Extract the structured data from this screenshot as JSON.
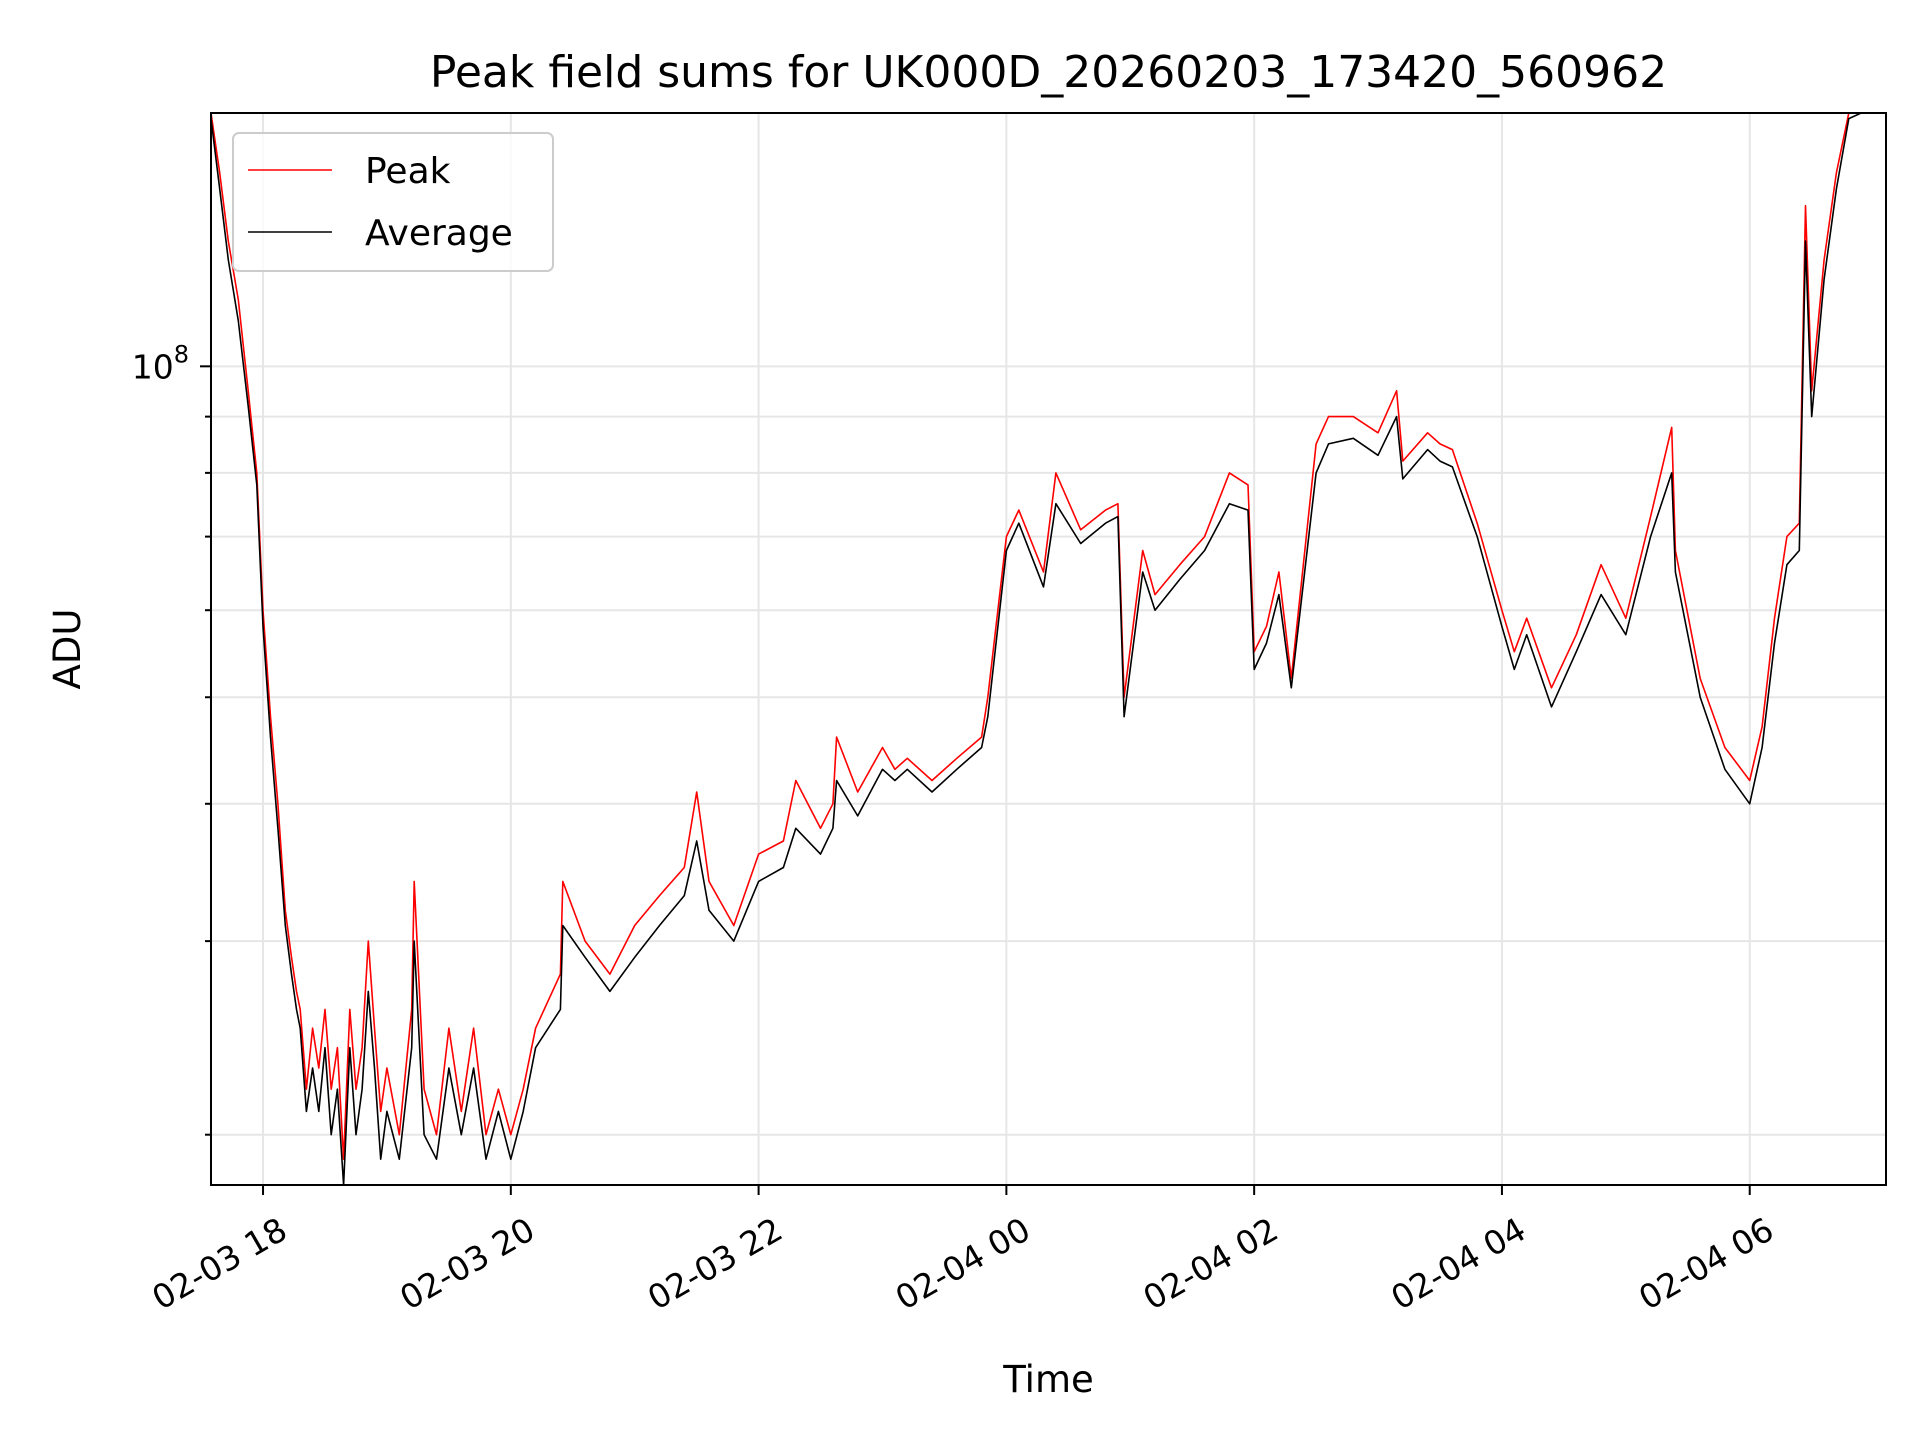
{
  "chart_data": {
    "type": "line",
    "title": "Peak field sums for UK000D_20260203_173420_560962",
    "xlabel": "Time",
    "ylabel": "ADU",
    "yscale": "log",
    "ylim": [
      18000000,
      170000000
    ],
    "xlim": [
      -0.42,
      13.1
    ],
    "x_ticks": [
      {
        "x": 0,
        "label": "02-03 18"
      },
      {
        "x": 2,
        "label": "02-03 20"
      },
      {
        "x": 4,
        "label": "02-03 22"
      },
      {
        "x": 6,
        "label": "02-04 00"
      },
      {
        "x": 8,
        "label": "02-04 02"
      },
      {
        "x": 10,
        "label": "02-04 04"
      },
      {
        "x": 12,
        "label": "02-04 06"
      }
    ],
    "y_ticks": [
      {
        "value": 100000000,
        "label_base": "10",
        "label_exp": "8"
      }
    ],
    "y_minor_ticks": [
      20000000,
      30000000,
      40000000,
      50000000,
      60000000,
      70000000,
      80000000,
      90000000,
      200000000
    ],
    "x_unit": "hours after 02-03 18:00",
    "grid": true,
    "legend_position": "upper-left",
    "series": [
      {
        "name": "Peak",
        "color": "#ff0000",
        "x": [
          -0.42,
          -0.35,
          -0.28,
          -0.2,
          -0.12,
          -0.05,
          0.0,
          0.06,
          0.12,
          0.18,
          0.23,
          0.27,
          0.3,
          0.35,
          0.4,
          0.45,
          0.5,
          0.55,
          0.6,
          0.65,
          0.7,
          0.75,
          0.8,
          0.85,
          0.9,
          0.95,
          1.0,
          1.1,
          1.2,
          1.22,
          1.3,
          1.4,
          1.5,
          1.6,
          1.7,
          1.8,
          1.9,
          2.0,
          2.1,
          2.2,
          2.4,
          2.42,
          2.6,
          2.8,
          3.0,
          3.2,
          3.4,
          3.5,
          3.6,
          3.8,
          4.0,
          4.2,
          4.3,
          4.5,
          4.6,
          4.63,
          4.8,
          5.0,
          5.1,
          5.2,
          5.4,
          5.6,
          5.8,
          5.85,
          6.0,
          6.1,
          6.3,
          6.4,
          6.6,
          6.8,
          6.9,
          6.95,
          7.1,
          7.2,
          7.4,
          7.6,
          7.8,
          7.95,
          8.0,
          8.1,
          8.2,
          8.3,
          8.5,
          8.6,
          8.8,
          9.0,
          9.15,
          9.2,
          9.4,
          9.5,
          9.6,
          9.8,
          10.0,
          10.1,
          10.2,
          10.4,
          10.6,
          10.8,
          11.0,
          11.2,
          11.37,
          11.4,
          11.6,
          11.8,
          12.0,
          12.1,
          12.2,
          12.3,
          12.4,
          12.45,
          12.5,
          12.6,
          12.7,
          12.8,
          12.9,
          13.0,
          13.1
        ],
        "values": [
          170000000,
          150000000,
          130000000,
          115000000,
          95000000,
          80000000,
          60000000,
          48000000,
          40000000,
          32000000,
          29000000,
          27000000,
          26000000,
          22000000,
          25000000,
          23000000,
          26000000,
          22000000,
          24000000,
          19000000,
          26000000,
          22000000,
          24000000,
          30000000,
          25000000,
          21000000,
          23000000,
          20000000,
          26000000,
          34000000,
          22000000,
          20000000,
          25000000,
          21000000,
          25000000,
          20000000,
          22000000,
          20000000,
          22000000,
          25000000,
          28000000,
          34000000,
          30000000,
          28000000,
          31000000,
          33000000,
          35000000,
          41000000,
          34000000,
          31000000,
          36000000,
          37000000,
          42000000,
          38000000,
          40000000,
          46000000,
          41000000,
          45000000,
          43000000,
          44000000,
          42000000,
          44000000,
          46000000,
          50000000,
          70000000,
          74000000,
          65000000,
          80000000,
          71000000,
          74000000,
          75000000,
          50000000,
          68000000,
          62000000,
          66000000,
          70000000,
          80000000,
          78000000,
          55000000,
          58000000,
          65000000,
          52000000,
          85000000,
          90000000,
          90000000,
          87000000,
          95000000,
          82000000,
          87000000,
          85000000,
          84000000,
          72000000,
          60000000,
          55000000,
          59000000,
          51000000,
          57000000,
          66000000,
          59000000,
          73000000,
          88000000,
          68000000,
          52000000,
          45000000,
          42000000,
          47000000,
          59000000,
          70000000,
          72000000,
          140000000,
          95000000,
          125000000,
          150000000,
          170000000,
          170000000,
          170000000,
          170000000
        ]
      },
      {
        "name": "Average",
        "color": "#000000",
        "x": [
          -0.42,
          -0.35,
          -0.28,
          -0.2,
          -0.12,
          -0.05,
          0.0,
          0.06,
          0.12,
          0.18,
          0.23,
          0.27,
          0.3,
          0.35,
          0.4,
          0.45,
          0.5,
          0.55,
          0.6,
          0.65,
          0.7,
          0.75,
          0.8,
          0.85,
          0.9,
          0.95,
          1.0,
          1.1,
          1.2,
          1.22,
          1.3,
          1.4,
          1.5,
          1.6,
          1.7,
          1.8,
          1.9,
          2.0,
          2.1,
          2.2,
          2.4,
          2.42,
          2.6,
          2.8,
          3.0,
          3.2,
          3.4,
          3.5,
          3.6,
          3.8,
          4.0,
          4.2,
          4.3,
          4.5,
          4.6,
          4.63,
          4.8,
          5.0,
          5.1,
          5.2,
          5.4,
          5.6,
          5.8,
          5.85,
          6.0,
          6.1,
          6.3,
          6.4,
          6.6,
          6.8,
          6.9,
          6.95,
          7.1,
          7.2,
          7.4,
          7.6,
          7.8,
          7.95,
          8.0,
          8.1,
          8.2,
          8.3,
          8.5,
          8.6,
          8.8,
          9.0,
          9.15,
          9.2,
          9.4,
          9.5,
          9.6,
          9.8,
          10.0,
          10.1,
          10.2,
          10.4,
          10.6,
          10.8,
          11.0,
          11.2,
          11.37,
          11.4,
          11.6,
          11.8,
          12.0,
          12.1,
          12.2,
          12.3,
          12.4,
          12.45,
          12.5,
          12.6,
          12.7,
          12.8,
          12.9,
          13.0,
          13.1
        ],
        "values": [
          168000000,
          145000000,
          125000000,
          110000000,
          92000000,
          78000000,
          58000000,
          46000000,
          38000000,
          31000000,
          28000000,
          26000000,
          25000000,
          21000000,
          23000000,
          21000000,
          24000000,
          20000000,
          22000000,
          18000000,
          24000000,
          20000000,
          22000000,
          27000000,
          23000000,
          19000000,
          21000000,
          19000000,
          24000000,
          30000000,
          20000000,
          19000000,
          23000000,
          20000000,
          23000000,
          19000000,
          21000000,
          19000000,
          21000000,
          24000000,
          26000000,
          31000000,
          29000000,
          27000000,
          29000000,
          31000000,
          33000000,
          37000000,
          32000000,
          30000000,
          34000000,
          35000000,
          38000000,
          36000000,
          38000000,
          42000000,
          39000000,
          43000000,
          42000000,
          43000000,
          41000000,
          43000000,
          45000000,
          48000000,
          68000000,
          72000000,
          63000000,
          75000000,
          69000000,
          72000000,
          73000000,
          48000000,
          65000000,
          60000000,
          64000000,
          68000000,
          75000000,
          74000000,
          53000000,
          56000000,
          62000000,
          51000000,
          80000000,
          85000000,
          86000000,
          83000000,
          90000000,
          79000000,
          84000000,
          82000000,
          81000000,
          70000000,
          58000000,
          53000000,
          57000000,
          49000000,
          55000000,
          62000000,
          57000000,
          70000000,
          80000000,
          65000000,
          50000000,
          43000000,
          40000000,
          45000000,
          56000000,
          66000000,
          68000000,
          130000000,
          90000000,
          120000000,
          145000000,
          168000000,
          170000000,
          170000000,
          170000000
        ]
      }
    ]
  }
}
